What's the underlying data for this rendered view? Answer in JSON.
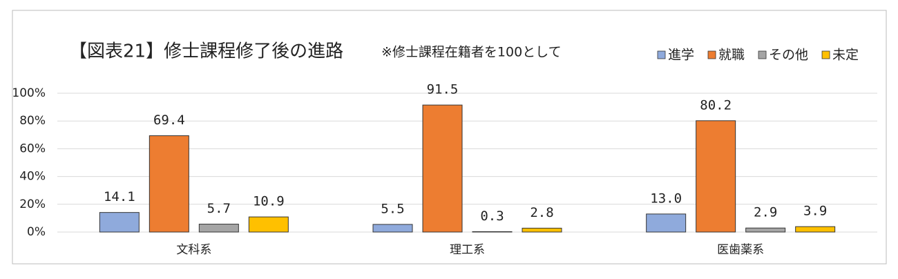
{
  "chart_data": {
    "type": "bar",
    "title": "【図表21】修士課程修了後の進路",
    "subtitle": "※修士課程在籍者を100として",
    "categories": [
      "文科系",
      "理工系",
      "医歯薬系"
    ],
    "series": [
      {
        "name": "進学",
        "color": "#8faadc",
        "values": [
          14.1,
          5.5,
          13.0
        ],
        "value_labels": [
          "14.1",
          "5.5",
          "13.0"
        ]
      },
      {
        "name": "就職",
        "color": "#ed7d31",
        "values": [
          69.4,
          91.5,
          80.2
        ],
        "value_labels": [
          "69.4",
          "91.5",
          "80.2"
        ]
      },
      {
        "name": "その他",
        "color": "#a5a5a5",
        "values": [
          5.7,
          0.3,
          2.9
        ],
        "value_labels": [
          "5.7",
          "0.3",
          "2.9"
        ]
      },
      {
        "name": "未定",
        "color": "#ffc000",
        "values": [
          10.9,
          2.8,
          3.9
        ],
        "value_labels": [
          "10.9",
          "2.8",
          "3.9"
        ]
      }
    ],
    "ylim": [
      0,
      100
    ],
    "yticks": [
      {
        "value": 0,
        "label": "0%"
      },
      {
        "value": 20,
        "label": "20%"
      },
      {
        "value": 40,
        "label": "40%"
      },
      {
        "value": 60,
        "label": "60%"
      },
      {
        "value": 80,
        "label": "80%"
      },
      {
        "value": 100,
        "label": "100%"
      }
    ],
    "grid": true,
    "legend": "top-right"
  }
}
